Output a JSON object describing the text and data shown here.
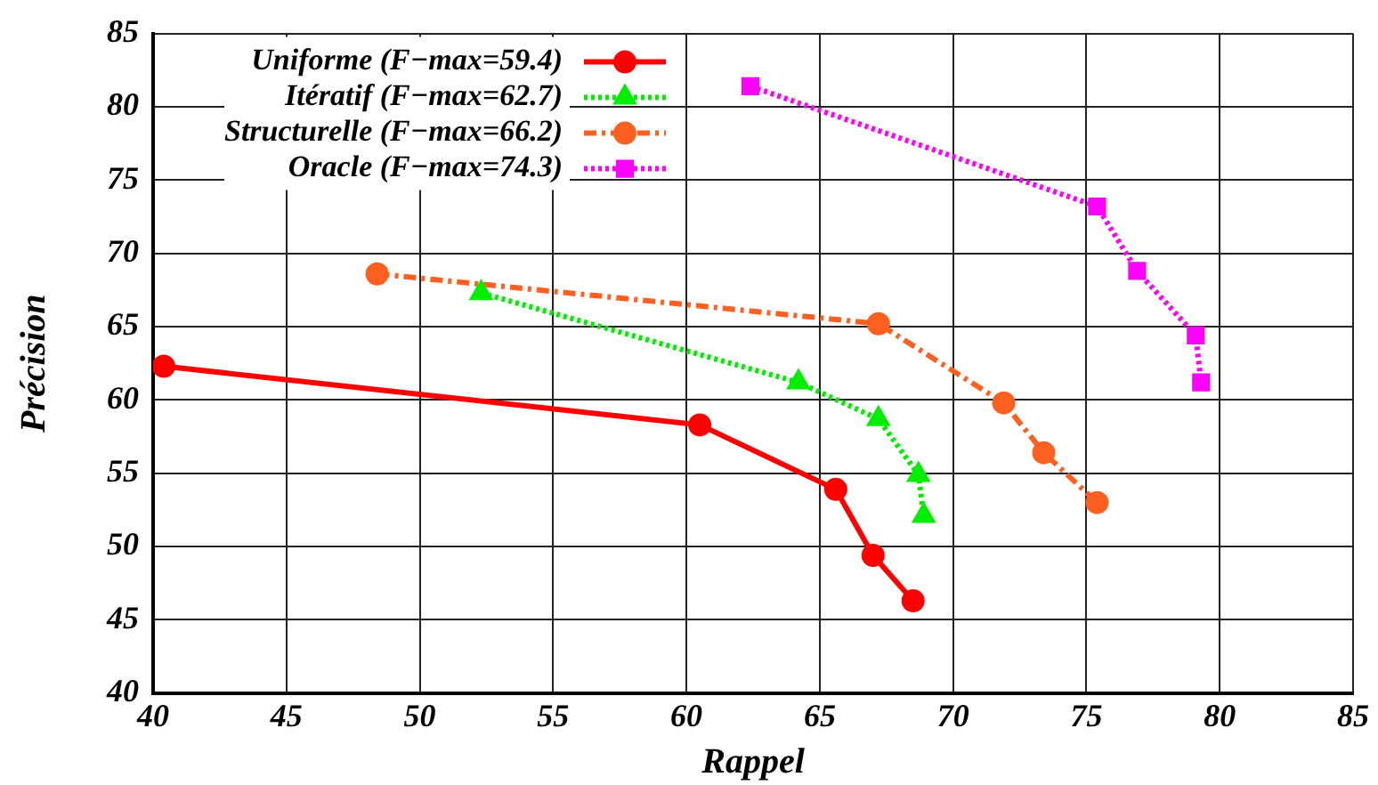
{
  "chart_data": {
    "type": "line",
    "xlabel": "Rappel",
    "ylabel": "Précision",
    "xlim": [
      40,
      85
    ],
    "xticks": [
      40,
      45,
      50,
      55,
      60,
      65,
      70,
      75,
      80,
      85
    ],
    "ylim": [
      40,
      85
    ],
    "yticks": [
      40,
      45,
      50,
      55,
      60,
      65,
      70,
      75,
      80,
      85
    ],
    "grid": true,
    "legend": "top left",
    "series": [
      {
        "name": "Uniforme (F−max=59.4)",
        "color": "#ff0000",
        "marker": "circle",
        "line_style": "solid",
        "x": [
          40.4,
          60.5,
          65.6,
          67,
          68.5
        ],
        "values": [
          62.3,
          58.3,
          53.9,
          49.4,
          46.3
        ]
      },
      {
        "name": "Itératif (F−max=62.7)",
        "color": "#00ee00",
        "marker": "triangle",
        "line_style": "dotted",
        "x": [
          52.3,
          64.2,
          67.2,
          68.7,
          68.9
        ],
        "values": [
          67.3,
          61.2,
          58.7,
          54.9,
          52.1
        ]
      },
      {
        "name": "Structurelle (F−max=66.2)",
        "color": "#ff6020",
        "marker": "circle",
        "line_style": "dashed",
        "x": [
          48.4,
          67.2,
          71.9,
          73.4,
          75.4
        ],
        "values": [
          68.6,
          65.2,
          59.8,
          56.4,
          53
        ]
      },
      {
        "name": "Oracle (F−max=74.3)",
        "color": "#ff00ff",
        "marker": "square",
        "line_style": "dotted",
        "x": [
          62.4,
          75.4,
          76.9,
          79.1,
          79.3
        ],
        "values": [
          81.4,
          73.2,
          68.8,
          64.4,
          61.2
        ]
      }
    ]
  }
}
